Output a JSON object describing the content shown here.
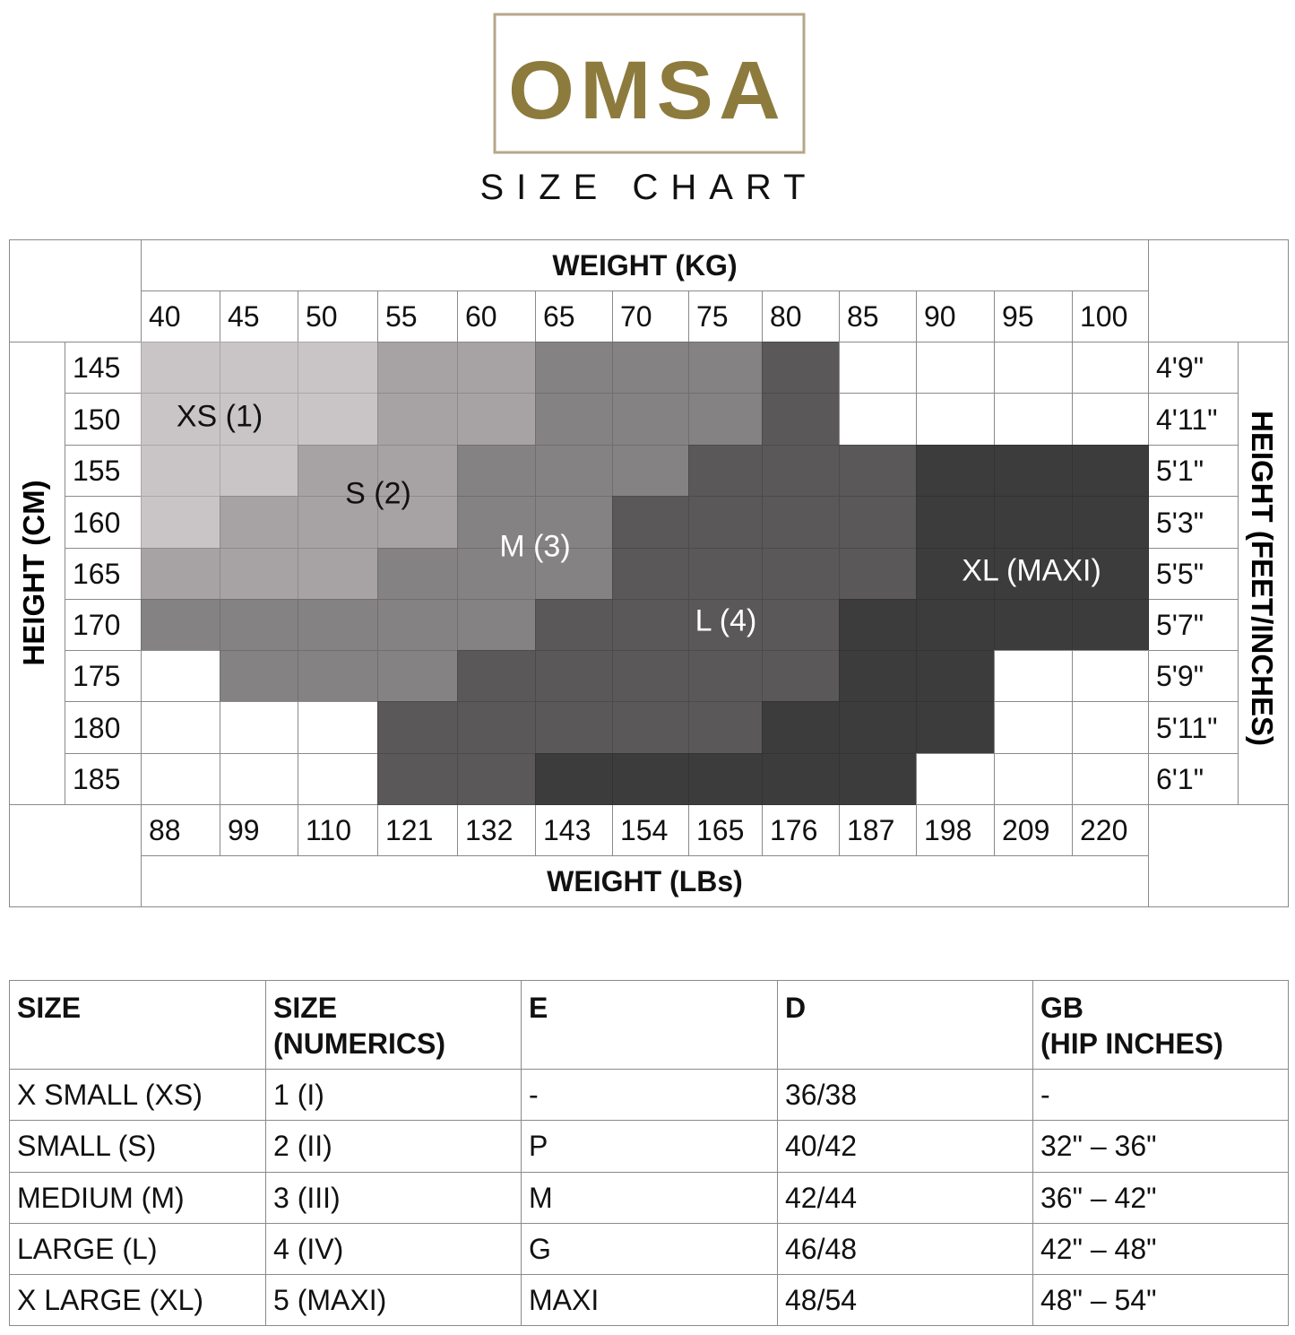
{
  "logo": "OMSA",
  "title": "SIZE CHART",
  "grid": {
    "weight_kg_label": "WEIGHT (KG)",
    "weight_lbs_label": "WEIGHT (LBs)",
    "height_cm_label": "HEIGHT (CM)",
    "height_ft_label": "HEIGHT (FEET/INCHES)",
    "kg": [
      40,
      45,
      50,
      55,
      60,
      65,
      70,
      75,
      80,
      85,
      90,
      95,
      100
    ],
    "lbs": [
      88,
      99,
      110,
      121,
      132,
      143,
      154,
      165,
      176,
      187,
      198,
      209,
      220
    ],
    "cm": [
      145,
      150,
      155,
      160,
      165,
      170,
      175,
      180,
      185
    ],
    "ft": [
      "4'9\"",
      "4'11\"",
      "5'1\"",
      "5'3\"",
      "5'5\"",
      "5'7\"",
      "5'9\"",
      "5'11\"",
      "6'1\""
    ],
    "cells": [
      [
        "#c9c5c6",
        "#c9c5c6",
        "#c9c5c6",
        "#a7a3a4",
        "#a7a3a4",
        "#858283",
        "#858283",
        "#858283",
        "#5a5859",
        null,
        null,
        null,
        null
      ],
      [
        "#c9c5c6",
        "#c9c5c6",
        "#c9c5c6",
        "#a7a3a4",
        "#a7a3a4",
        "#858283",
        "#858283",
        "#858283",
        "#5a5859",
        null,
        null,
        null,
        null
      ],
      [
        "#c9c5c6",
        "#c9c5c6",
        "#a7a3a4",
        "#a7a3a4",
        "#858283",
        "#858283",
        "#858283",
        "#5a5859",
        "#5a5859",
        "#5a5859",
        "#3d3c3d",
        "#3d3c3d",
        "#3d3c3d"
      ],
      [
        "#c9c5c6",
        "#a7a3a4",
        "#a7a3a4",
        "#a7a3a4",
        "#858283",
        "#858283",
        "#5a5859",
        "#5a5859",
        "#5a5859",
        "#5a5859",
        "#3d3c3d",
        "#3d3c3d",
        "#3d3c3d"
      ],
      [
        "#a7a3a4",
        "#a7a3a4",
        "#a7a3a4",
        "#858283",
        "#858283",
        "#858283",
        "#5a5859",
        "#5a5859",
        "#5a5859",
        "#5a5859",
        "#3d3c3d",
        "#3d3c3d",
        "#3d3c3d"
      ],
      [
        "#858283",
        "#858283",
        "#858283",
        "#858283",
        "#858283",
        "#5a5859",
        "#5a5859",
        "#5a5859",
        "#5a5859",
        "#3d3c3d",
        "#3d3c3d",
        "#3d3c3d",
        "#3d3c3d"
      ],
      [
        null,
        "#858283",
        "#858283",
        "#858283",
        "#5a5859",
        "#5a5859",
        "#5a5859",
        "#5a5859",
        "#5a5859",
        "#3d3c3d",
        "#3d3c3d",
        null,
        null
      ],
      [
        null,
        null,
        null,
        "#5a5859",
        "#5a5859",
        "#5a5859",
        "#5a5859",
        "#5a5859",
        "#3d3c3d",
        "#3d3c3d",
        "#3d3c3d",
        null,
        null
      ],
      [
        null,
        null,
        null,
        "#5a5859",
        "#5a5859",
        "#3d3c3d",
        "#3d3c3d",
        "#3d3c3d",
        "#3d3c3d",
        "#3d3c3d",
        null,
        null,
        null
      ]
    ],
    "zones": [
      {
        "label": "XS (1)",
        "color": "#111111"
      },
      {
        "label": "S (2)",
        "color": "#111111"
      },
      {
        "label": "M (3)",
        "color": "#ffffff"
      },
      {
        "label": "L (4)",
        "color": "#ffffff"
      },
      {
        "label": "XL (MAXI)",
        "color": "#ffffff"
      }
    ]
  },
  "table": {
    "header": [
      "SIZE",
      "SIZE\n(NUMERICS)",
      "E",
      "D",
      "GB\n(HIP INCHES)"
    ],
    "rows": [
      [
        "X SMALL (XS)",
        "1 (I)",
        "-",
        "36/38",
        "-"
      ],
      [
        "SMALL (S)",
        "2 (II)",
        "P",
        "40/42",
        "32\" – 36\""
      ],
      [
        "MEDIUM (M)",
        "3 (III)",
        "M",
        "42/44",
        "36\" – 42\""
      ],
      [
        "LARGE (L)",
        "4 (IV)",
        "G",
        "46/48",
        "42\" – 48\""
      ],
      [
        "X LARGE (XL)",
        "5 (MAXI)",
        "MAXI",
        "48/54",
        "48\" – 54\""
      ]
    ]
  }
}
